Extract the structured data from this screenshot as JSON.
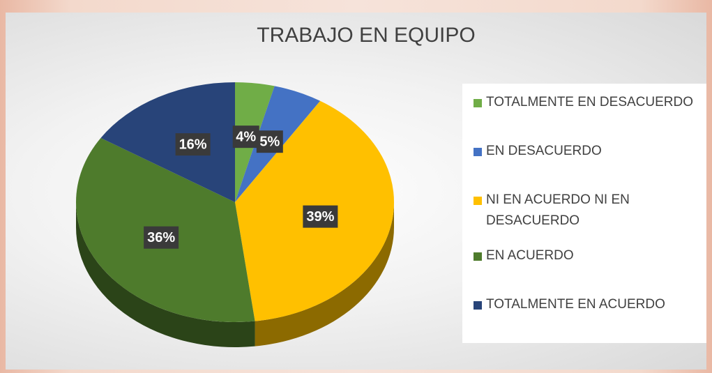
{
  "chart_data": {
    "type": "pie",
    "title": "TRABAJO EN EQUIPO",
    "categories": [
      "TOTALMENTE EN DESACUERDO",
      "EN DESACUERDO",
      "NI EN ACUERDO NI EN DESACUERDO",
      "EN ACUERDO",
      "TOTALMENTE EN ACUERDO"
    ],
    "values": [
      4,
      5,
      39,
      36,
      16
    ],
    "value_labels": [
      "4%",
      "5%",
      "39%",
      "36%",
      "16%"
    ],
    "colors": [
      "#70ad47",
      "#4472c4",
      "#ffc000",
      "#4e7b2c",
      "#284479"
    ],
    "legend": "right"
  }
}
